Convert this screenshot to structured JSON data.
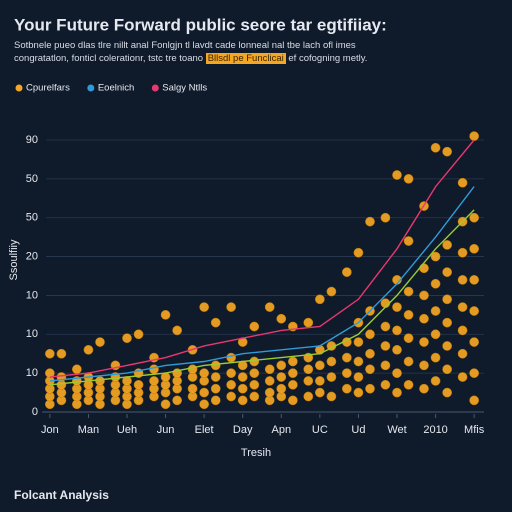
{
  "chart_data": {
    "type": "scatter",
    "title": "Your Future Forward public seore tar egtifiiay:",
    "subtitle": "Sotbnele pueo dlas tlre nillt anal Fonlgjn tl lavdt cade lonneal nal tbe lach ofl imes",
    "subtitle_2": [
      "congratatlon, fonticl colerationr, tstc tre toano",
      "Bllsdl pe Funclicai",
      "ef cofogning metly."
    ],
    "x_label": "Tresih",
    "y_label": "Ssoulfiiy",
    "footer": "Folcant Analysis",
    "legend": "top-left",
    "grid": true,
    "xlim": [
      -0.1,
      11.1
    ],
    "ylim": [
      0,
      70
    ],
    "xticks": [
      {
        "value": 0,
        "label": "Jon"
      },
      {
        "value": 1,
        "label": "Man"
      },
      {
        "value": 2,
        "label": "Ueh"
      },
      {
        "value": 3,
        "label": "Jun"
      },
      {
        "value": 4,
        "label": "Elet"
      },
      {
        "value": 5,
        "label": "Day"
      },
      {
        "value": 6,
        "label": "Apn"
      },
      {
        "value": 7,
        "label": "UC"
      },
      {
        "value": 8,
        "label": "Ud"
      },
      {
        "value": 9,
        "label": "Wet"
      },
      {
        "value": 10,
        "label": "2010"
      },
      {
        "value": 11,
        "label": "Mfis"
      }
    ],
    "yticks": [
      0,
      10,
      {
        "value": 20,
        "label": "10"
      },
      {
        "value": 30,
        "label": "10"
      },
      {
        "value": 40,
        "label": "20"
      },
      50,
      {
        "value": 60,
        "label": "50"
      },
      {
        "value": 70,
        "label": "90"
      }
    ],
    "series": [
      {
        "name": "Cpurelfars",
        "color": "#f5a623",
        "kind": "points",
        "x": [
          0,
          0,
          0,
          0,
          0,
          0,
          0.3,
          0.3,
          0.3,
          0.3,
          0.3,
          0.7,
          0.7,
          0.7,
          0.7,
          0.7,
          1,
          1,
          1,
          1,
          1,
          1.3,
          1.3,
          1.3,
          1.3,
          1.3,
          1.7,
          1.7,
          1.7,
          1.7,
          1.7,
          2,
          2,
          2,
          2,
          2,
          2.3,
          2.3,
          2.3,
          2.3,
          2.3,
          2.7,
          2.7,
          2.7,
          2.7,
          2.7,
          3,
          3,
          3,
          3,
          3,
          3.3,
          3.3,
          3.3,
          3.3,
          3.3,
          3.7,
          3.7,
          3.7,
          3.7,
          3.7,
          4,
          4,
          4,
          4,
          4,
          4.3,
          4.3,
          4.3,
          4.3,
          4.3,
          4.7,
          4.7,
          4.7,
          4.7,
          4.7,
          5,
          5,
          5,
          5,
          5,
          5.3,
          5.3,
          5.3,
          5.3,
          5.3,
          5.7,
          5.7,
          5.7,
          5.7,
          5.7,
          6,
          6,
          6,
          6,
          6,
          6.3,
          6.3,
          6.3,
          6.3,
          6.3,
          6.7,
          6.7,
          6.7,
          6.7,
          6.7,
          7,
          7,
          7,
          7,
          7,
          7.3,
          7.3,
          7.3,
          7.3,
          7.3,
          7.7,
          7.7,
          7.7,
          7.7,
          7.7,
          8,
          8,
          8,
          8,
          8,
          8,
          8.3,
          8.3,
          8.3,
          8.3,
          8.3,
          8.3,
          8.7,
          8.7,
          8.7,
          8.7,
          8.7,
          8.7,
          9,
          9,
          9,
          9,
          9,
          9,
          9,
          9.3,
          9.3,
          9.3,
          9.3,
          9.3,
          9.3,
          9.3,
          9.7,
          9.7,
          9.7,
          9.7,
          9.7,
          9.7,
          9.7,
          10,
          10,
          10,
          10,
          10,
          10,
          10,
          10.3,
          10.3,
          10.3,
          10.3,
          10.3,
          10.3,
          10.3,
          10.3,
          10.7,
          10.7,
          10.7,
          10.7,
          10.7,
          10.7,
          10.7,
          10.7,
          11,
          11,
          11,
          11,
          11,
          11,
          11,
          11
        ],
        "values": [
          2,
          4,
          6,
          8,
          10,
          15,
          3,
          5,
          7,
          9,
          15,
          2,
          4,
          6,
          8,
          11,
          3,
          5,
          7,
          9,
          16,
          2,
          4,
          6,
          8,
          18,
          3,
          5,
          7,
          9,
          12,
          2,
          4,
          6,
          8,
          19,
          3,
          5,
          7,
          10,
          20,
          4,
          6,
          8,
          11,
          14,
          2,
          5,
          7,
          9,
          25,
          3,
          6,
          8,
          10,
          21,
          4,
          6,
          9,
          11,
          16,
          2,
          5,
          8,
          10,
          27,
          3,
          6,
          9,
          12,
          23,
          4,
          7,
          10,
          14,
          27,
          3,
          6,
          9,
          12,
          18,
          4,
          7,
          10,
          13,
          22,
          3,
          5,
          8,
          11,
          27,
          4,
          6,
          9,
          12,
          24,
          3,
          7,
          10,
          13,
          22,
          4,
          8,
          11,
          14,
          23,
          5,
          8,
          12,
          16,
          29,
          4,
          9,
          13,
          17,
          31,
          6,
          10,
          14,
          18,
          36,
          5,
          9,
          13,
          18,
          23,
          41,
          6,
          11,
          15,
          20,
          26,
          49,
          7,
          12,
          17,
          22,
          28,
          50,
          5,
          10,
          16,
          21,
          27,
          34,
          61,
          7,
          13,
          19,
          25,
          31,
          44,
          60,
          6,
          12,
          18,
          24,
          30,
          37,
          53,
          8,
          14,
          20,
          26,
          33,
          40,
          68,
          5,
          11,
          17,
          23,
          29,
          36,
          43,
          67,
          9,
          15,
          21,
          27,
          34,
          41,
          49,
          59,
          3,
          10,
          18,
          26,
          34,
          42,
          50,
          71
        ]
      },
      {
        "name": "Eoelnich",
        "color": "#2f9bd8",
        "kind": "line",
        "x": [
          0,
          1,
          2,
          3,
          4,
          5,
          6,
          7,
          8,
          9,
          10,
          11
        ],
        "values": [
          8,
          9,
          10,
          12,
          13,
          15,
          16,
          17,
          23,
          33,
          45,
          58
        ]
      },
      {
        "name": "Salgy Ntlls",
        "color": "#e8386f",
        "kind": "line",
        "x": [
          0,
          1,
          2,
          3,
          4,
          5,
          6,
          7,
          8,
          9,
          10,
          11
        ],
        "values": [
          9,
          10,
          12,
          14,
          17,
          19,
          21,
          22,
          29,
          42,
          58,
          70
        ]
      },
      {
        "color": "#9acd32",
        "kind": "line",
        "x": [
          0,
          1,
          2,
          3,
          4,
          5,
          6,
          7,
          8,
          9,
          10,
          11
        ],
        "values": [
          7,
          8,
          9,
          10,
          12,
          13,
          14,
          15,
          20,
          30,
          42,
          52
        ]
      }
    ]
  }
}
